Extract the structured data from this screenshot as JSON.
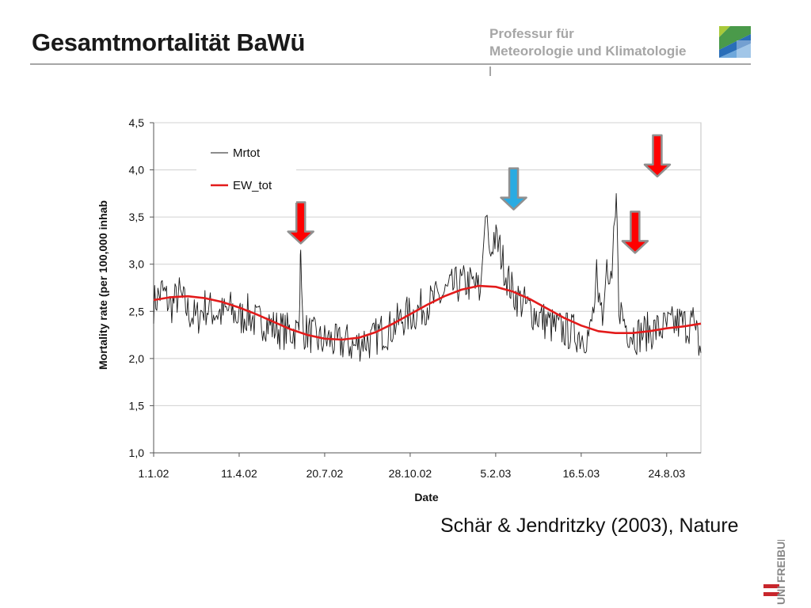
{
  "slide": {
    "title": "Gesamtmortalität BaWü",
    "institute_line1": "Professur für",
    "institute_line2": "Meteorologie und Klimatologie",
    "citation": "Schär & Jendritzky (2003), Nature",
    "university_logo_text": "UNI FREIBURG"
  },
  "colors": {
    "mrtot": "#1a1a1a",
    "ew_tot": "#e31b1b",
    "arrow_red": "#ff0000",
    "arrow_blue": "#29abe2",
    "arrow_outline": "#909090",
    "grid": "#d0d0d0"
  },
  "chart_data": {
    "type": "line",
    "xlabel": "Date",
    "ylabel": "Mortality rate (per 100,000 inhab",
    "ylim": [
      1.0,
      4.5
    ],
    "yticks": [
      "1,0",
      "1,5",
      "2,0",
      "2,5",
      "3,0",
      "3,5",
      "4,0",
      "4,5"
    ],
    "xticks": [
      "1.1.02",
      "11.4.02",
      "20.7.02",
      "28.10.02",
      "5.2.03",
      "16.5.03",
      "24.8.03"
    ],
    "xrange_days": [
      0,
      640
    ],
    "grid": "horizontal",
    "legend_position": "top-left",
    "series": [
      {
        "name": "Mrtot",
        "style": "thin-noisy",
        "points": [
          [
            0,
            2.58
          ],
          [
            10,
            2.72
          ],
          [
            20,
            2.55
          ],
          [
            30,
            2.68
          ],
          [
            40,
            2.5
          ],
          [
            50,
            2.42
          ],
          [
            60,
            2.55
          ],
          [
            70,
            2.5
          ],
          [
            80,
            2.47
          ],
          [
            90,
            2.52
          ],
          [
            100,
            2.42
          ],
          [
            110,
            2.48
          ],
          [
            120,
            2.38
          ],
          [
            130,
            2.4
          ],
          [
            140,
            2.33
          ],
          [
            150,
            2.3
          ],
          [
            160,
            2.28
          ],
          [
            170,
            2.3
          ],
          [
            171,
            2.62
          ],
          [
            171.5,
            3.1
          ],
          [
            172,
            3.15
          ],
          [
            173,
            2.75
          ],
          [
            175,
            2.3
          ],
          [
            185,
            2.25
          ],
          [
            195,
            2.18
          ],
          [
            205,
            2.2
          ],
          [
            215,
            2.15
          ],
          [
            225,
            2.18
          ],
          [
            235,
            2.12
          ],
          [
            245,
            2.2
          ],
          [
            255,
            2.18
          ],
          [
            265,
            2.28
          ],
          [
            275,
            2.3
          ],
          [
            285,
            2.38
          ],
          [
            295,
            2.45
          ],
          [
            305,
            2.48
          ],
          [
            315,
            2.55
          ],
          [
            325,
            2.6
          ],
          [
            335,
            2.65
          ],
          [
            345,
            2.72
          ],
          [
            355,
            2.78
          ],
          [
            365,
            2.8
          ],
          [
            375,
            2.78
          ],
          [
            382,
            2.7
          ],
          [
            385,
            3.1
          ],
          [
            388,
            3.5
          ],
          [
            390,
            3.52
          ],
          [
            393,
            3.05
          ],
          [
            398,
            3.3
          ],
          [
            405,
            3.15
          ],
          [
            412,
            2.9
          ],
          [
            420,
            2.7
          ],
          [
            430,
            2.6
          ],
          [
            440,
            2.52
          ],
          [
            450,
            2.45
          ],
          [
            460,
            2.38
          ],
          [
            470,
            2.32
          ],
          [
            480,
            2.3
          ],
          [
            490,
            2.28
          ],
          [
            500,
            2.25
          ],
          [
            510,
            2.25
          ],
          [
            516,
            2.6
          ],
          [
            518,
            3.05
          ],
          [
            520,
            2.55
          ],
          [
            525,
            2.35
          ],
          [
            528,
            2.75
          ],
          [
            530,
            3.05
          ],
          [
            532,
            2.7
          ],
          [
            536,
            2.85
          ],
          [
            538,
            3.4
          ],
          [
            540,
            3.5
          ],
          [
            541,
            3.75
          ],
          [
            542,
            3.45
          ],
          [
            544,
            2.6
          ],
          [
            548,
            2.45
          ],
          [
            555,
            2.3
          ],
          [
            565,
            2.25
          ],
          [
            575,
            2.28
          ],
          [
            585,
            2.3
          ],
          [
            595,
            2.32
          ],
          [
            605,
            2.35
          ],
          [
            615,
            2.38
          ],
          [
            625,
            2.35
          ],
          [
            632,
            2.4
          ],
          [
            635,
            2.25
          ],
          [
            640,
            2.06
          ]
        ]
      },
      {
        "name": "EW_tot",
        "style": "smooth-thick",
        "points": [
          [
            0,
            2.62
          ],
          [
            20,
            2.65
          ],
          [
            40,
            2.66
          ],
          [
            60,
            2.64
          ],
          [
            80,
            2.6
          ],
          [
            100,
            2.54
          ],
          [
            120,
            2.47
          ],
          [
            140,
            2.39
          ],
          [
            160,
            2.31
          ],
          [
            180,
            2.25
          ],
          [
            200,
            2.21
          ],
          [
            220,
            2.2
          ],
          [
            240,
            2.22
          ],
          [
            260,
            2.28
          ],
          [
            280,
            2.37
          ],
          [
            300,
            2.47
          ],
          [
            320,
            2.57
          ],
          [
            340,
            2.66
          ],
          [
            360,
            2.73
          ],
          [
            380,
            2.77
          ],
          [
            400,
            2.76
          ],
          [
            420,
            2.71
          ],
          [
            440,
            2.63
          ],
          [
            460,
            2.53
          ],
          [
            480,
            2.43
          ],
          [
            500,
            2.35
          ],
          [
            520,
            2.29
          ],
          [
            540,
            2.27
          ],
          [
            560,
            2.27
          ],
          [
            580,
            2.29
          ],
          [
            600,
            2.32
          ],
          [
            620,
            2.34
          ],
          [
            640,
            2.37
          ]
        ]
      }
    ],
    "arrows": [
      {
        "color": "red",
        "x": 172,
        "tip_y": 3.22
      },
      {
        "color": "blue",
        "x": 421,
        "tip_y": 3.58
      },
      {
        "color": "red",
        "x": 563,
        "tip_y": 3.12
      },
      {
        "color": "red",
        "x": 589,
        "tip_y": 3.93
      }
    ]
  }
}
